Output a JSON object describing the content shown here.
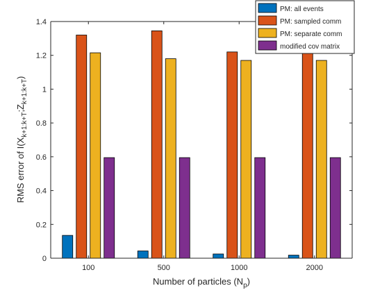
{
  "chart_data": {
    "type": "bar",
    "categories": [
      "100",
      "500",
      "1000",
      "2000"
    ],
    "series": [
      {
        "name": "PM: all events",
        "color": "#0072BD",
        "values": [
          0.135,
          0.043,
          0.025,
          0.018
        ]
      },
      {
        "name": "PM: sampled comm",
        "color": "#D95319",
        "values": [
          1.32,
          1.345,
          1.22,
          1.235
        ]
      },
      {
        "name": "PM: separate comm",
        "color": "#EDB120",
        "values": [
          1.215,
          1.18,
          1.17,
          1.17
        ]
      },
      {
        "name": "modified cov matrix",
        "color": "#7E2F8E",
        "values": [
          0.595,
          0.595,
          0.595,
          0.595
        ]
      }
    ],
    "xlabel": {
      "main": "Number of particles (N",
      "sub": "p",
      "close": ")"
    },
    "ylabel": {
      "prefix": "RMS error of I(X",
      "sub1": "k+1:k+T",
      "mid": ";Z",
      "sub2": "k+1:k+T",
      "suffix": ")"
    },
    "ylim": [
      0,
      1.4
    ],
    "yticks": [
      0,
      0.2,
      0.4,
      0.6,
      0.8,
      1,
      1.2,
      1.4
    ],
    "ytick_labels": [
      "0",
      "0.2",
      "0.4",
      "0.6",
      "0.8",
      "1",
      "1.2",
      "1.4"
    ],
    "grid": false,
    "legend_location": "top-right"
  }
}
